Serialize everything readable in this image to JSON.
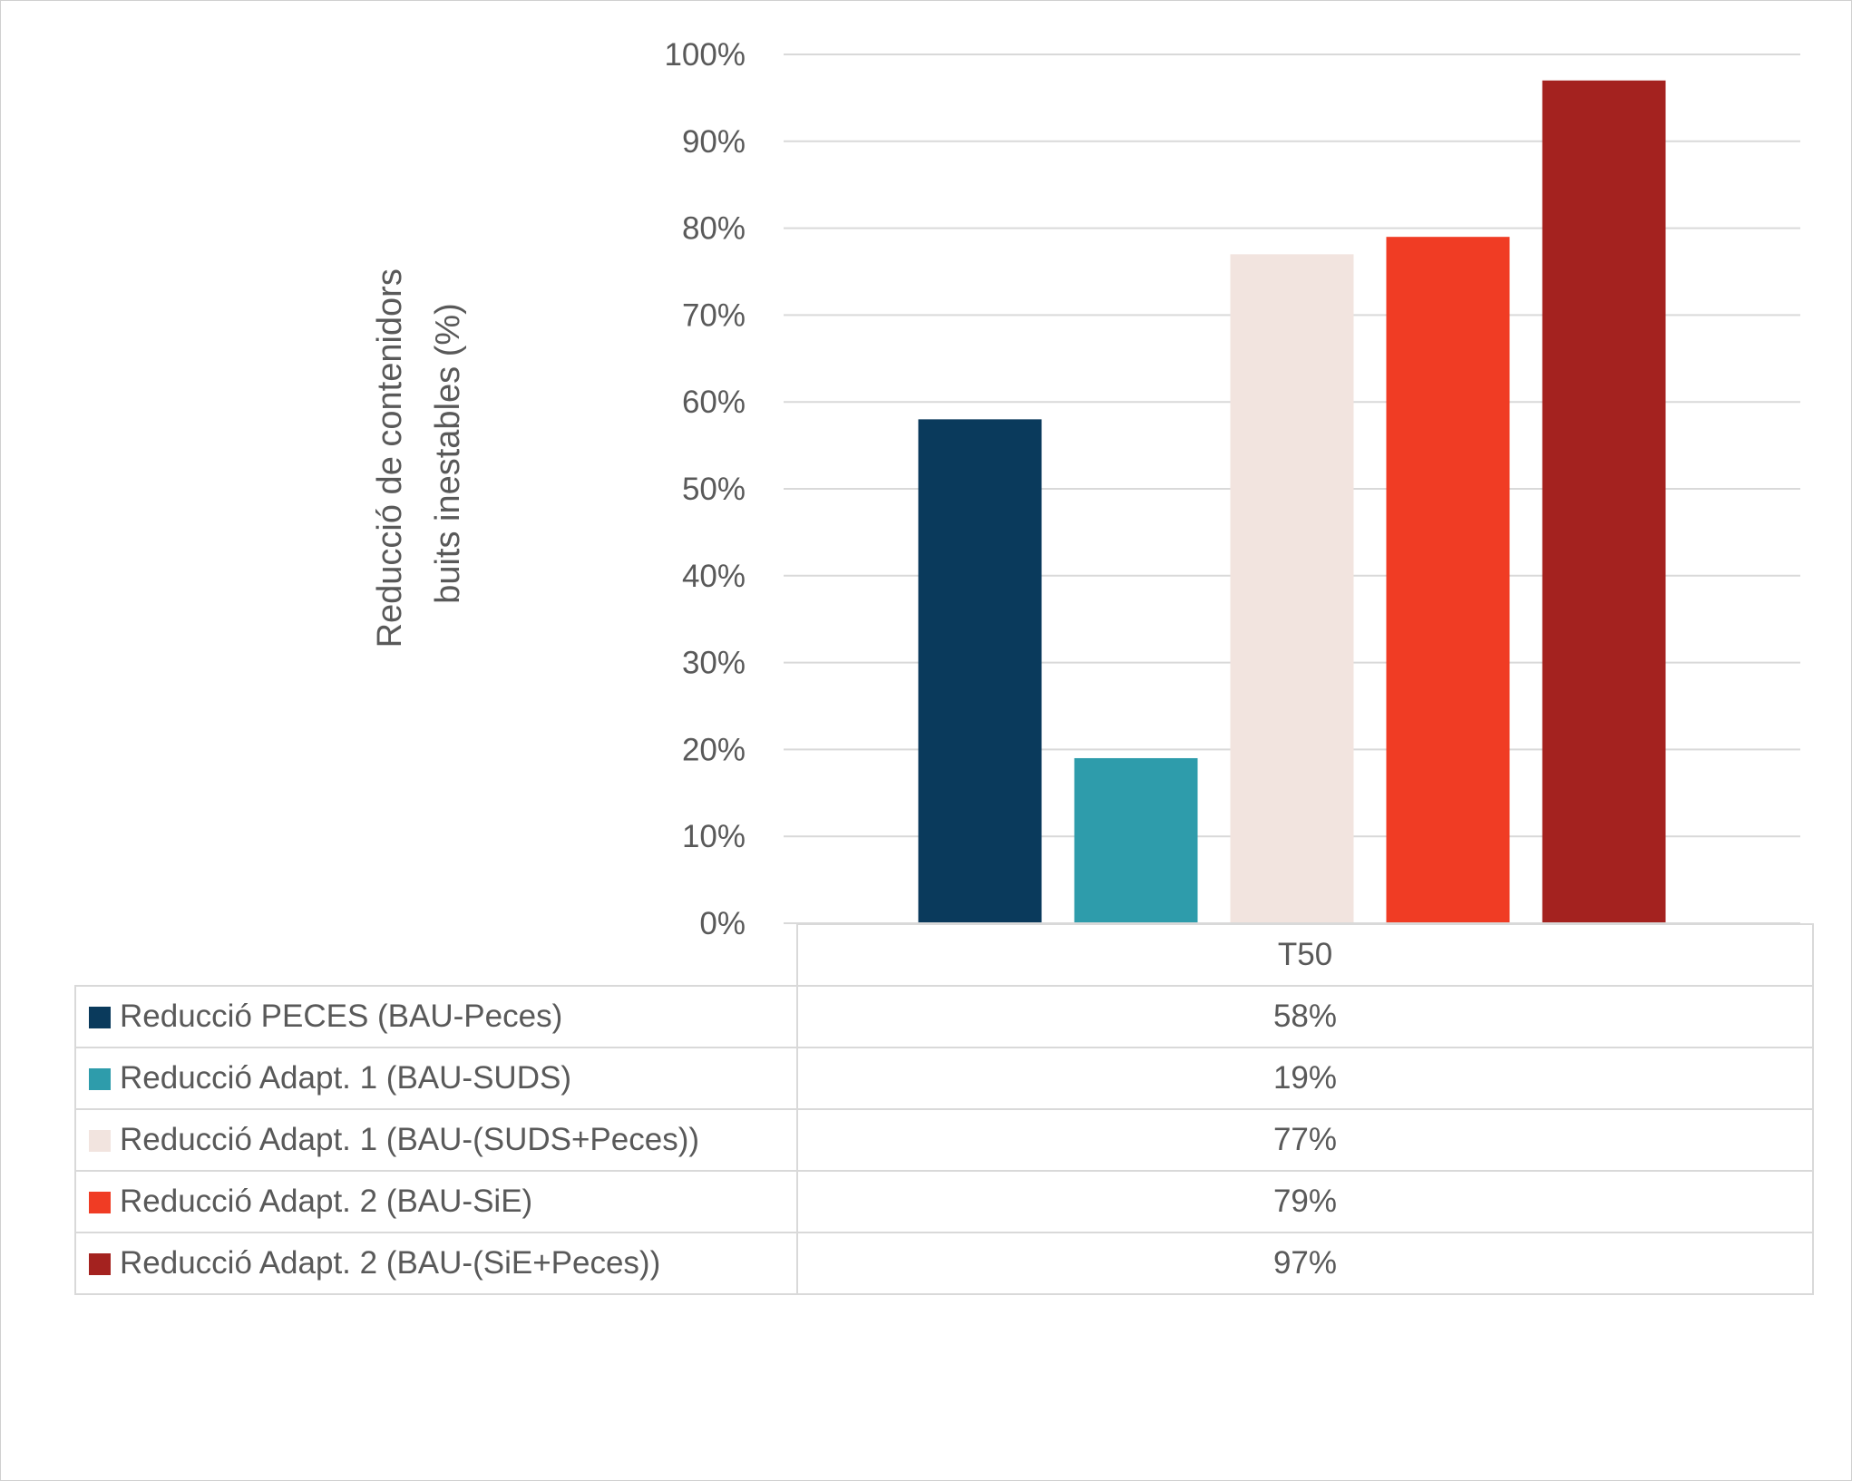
{
  "chart_data": {
    "type": "bar",
    "title": "",
    "ylabel": "Reducció de contenidors buits inestables (%)",
    "ylabel_lines": [
      "Reducció de contenidors",
      "buits inestables (%)"
    ],
    "xlabel": "",
    "ylim": [
      0,
      100
    ],
    "y_ticks": [
      0,
      10,
      20,
      30,
      40,
      50,
      60,
      70,
      80,
      90,
      100
    ],
    "y_tick_labels": [
      "0%",
      "10%",
      "20%",
      "30%",
      "40%",
      "50%",
      "60%",
      "70%",
      "80%",
      "90%",
      "100%"
    ],
    "categories": [
      "T50"
    ],
    "grid": true,
    "legend": "data-table",
    "series": [
      {
        "name": "Reducció PECES (BAU-Peces)",
        "color": "#0a3a5c",
        "values": [
          58
        ],
        "labels": [
          "58%"
        ]
      },
      {
        "name": "Reducció Adapt. 1 (BAU-SUDS)",
        "color": "#2e9cab",
        "values": [
          19
        ],
        "labels": [
          "19%"
        ]
      },
      {
        "name": "Reducció Adapt. 1 (BAU-(SUDS+Peces))",
        "color": "#f2e4df",
        "values": [
          77
        ],
        "labels": [
          "77%"
        ]
      },
      {
        "name": "Reducció Adapt. 2 (BAU-SiE)",
        "color": "#f03c24",
        "values": [
          79
        ],
        "labels": [
          "79%"
        ]
      },
      {
        "name": "Reducció Adapt. 2 (BAU-(SiE+Peces))",
        "color": "#a4221f",
        "values": [
          97
        ],
        "labels": [
          "97%"
        ]
      }
    ]
  }
}
